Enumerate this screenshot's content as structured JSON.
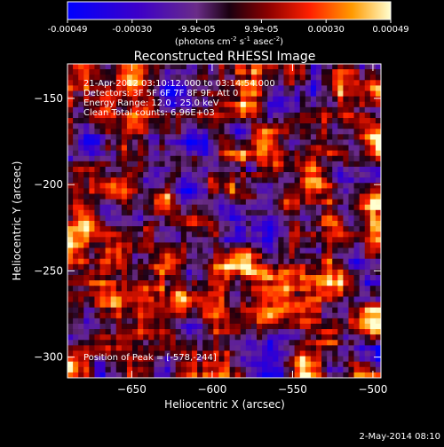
{
  "colorbar": {
    "ticks": [
      "-0.00049",
      "-0.00030",
      "-9.9e-05",
      "9.9e-05",
      "0.00030",
      "0.00049"
    ],
    "unit_parts": [
      "(photons cm",
      "-2",
      " s",
      "-1",
      " asec",
      "-2",
      ")"
    ]
  },
  "chart_data": {
    "type": "heatmap",
    "title": "Reconstructed RHESSI Image",
    "xlabel": "Heliocentric X (arcsec)",
    "ylabel": "Heliocentric Y (arcsec)",
    "xlim": [
      -690,
      -495
    ],
    "ylim": [
      -312,
      -130
    ],
    "xticks": [
      -650,
      -600,
      -550,
      -500
    ],
    "yticks": [
      -150,
      -200,
      -250,
      -300
    ],
    "zlim": [
      -0.00049,
      0.00049
    ],
    "peak": [
      -578,
      -244
    ],
    "annotations": [
      "21-Apr-2012 03:10:12.000 to 03:14:54.000",
      "Detectors: 3F 5F 6F 7F 8F 9F, Att 0",
      "Energy Range: 12.0 - 25.0 keV",
      "Clean     Total counts: 6.96E+03"
    ],
    "peak_label": "Position of Peak = [-578,-244]"
  },
  "footer": {
    "date": "2-May-2014 08:10"
  }
}
